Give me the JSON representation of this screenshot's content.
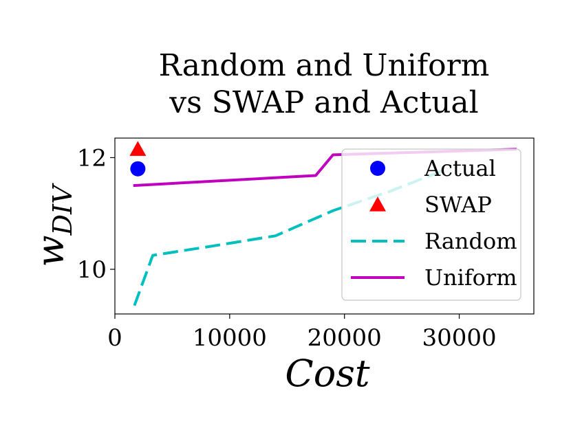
{
  "chart_data": {
    "type": "line",
    "title_line1": "Random and Uniform",
    "title_line2": "vs SWAP and Actual",
    "xlabel": "Cost",
    "ylabel_main": "w",
    "ylabel_sub": "DIV",
    "xlim": [
      0,
      36500
    ],
    "ylim": [
      9.2,
      12.35
    ],
    "xticks": [
      0,
      10000,
      20000,
      30000
    ],
    "xtick_labels": [
      "0",
      "10000",
      "20000",
      "30000"
    ],
    "yticks": [
      10,
      12
    ],
    "ytick_labels": [
      "10",
      "12"
    ],
    "legend_position": "right",
    "series": [
      {
        "name": "Actual",
        "kind": "point",
        "marker": "circle",
        "color": "#0000ff",
        "points": [
          {
            "x": 2000,
            "y": 11.8
          }
        ]
      },
      {
        "name": "SWAP",
        "kind": "point",
        "marker": "triangle",
        "color": "#ff0000",
        "points": [
          {
            "x": 2000,
            "y": 12.15
          }
        ]
      },
      {
        "name": "Random",
        "kind": "line",
        "dash": true,
        "color": "#00bfbf",
        "points": [
          {
            "x": 1700,
            "y": 9.35
          },
          {
            "x": 3300,
            "y": 10.25
          },
          {
            "x": 8000,
            "y": 10.4
          },
          {
            "x": 14000,
            "y": 10.6
          },
          {
            "x": 19000,
            "y": 11.05
          },
          {
            "x": 24000,
            "y": 11.4
          },
          {
            "x": 29000,
            "y": 11.8
          }
        ]
      },
      {
        "name": "Uniform",
        "kind": "line",
        "dash": false,
        "color": "#bf00bf",
        "points": [
          {
            "x": 1600,
            "y": 11.5
          },
          {
            "x": 17500,
            "y": 11.68
          },
          {
            "x": 19000,
            "y": 12.05
          },
          {
            "x": 35000,
            "y": 12.15
          }
        ]
      }
    ]
  }
}
